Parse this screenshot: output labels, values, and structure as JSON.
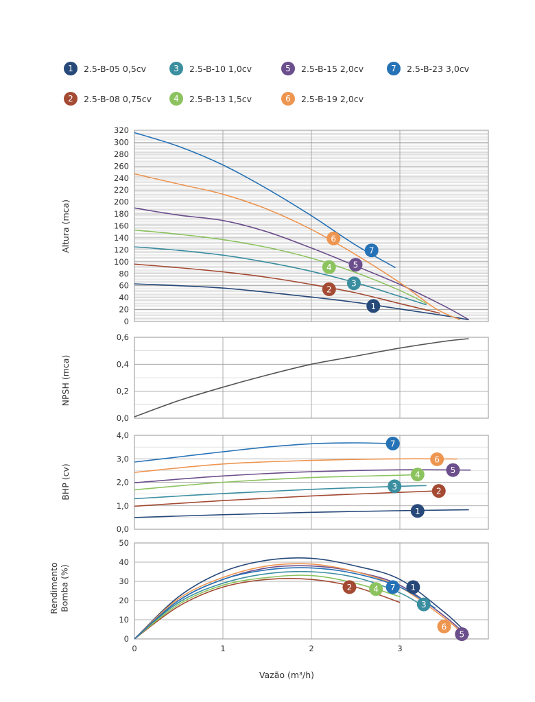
{
  "legend": [
    {
      "id": "1",
      "label": "2.5-B-05 0,5cv",
      "color": "#27497a"
    },
    {
      "id": "3",
      "label": "2.5-B-10 1,0cv",
      "color": "#3a8ea0"
    },
    {
      "id": "5",
      "label": "2.5-B-15 2,0cv",
      "color": "#6b4e8c"
    },
    {
      "id": "7",
      "label": "2.5-B-23 3,0cv",
      "color": "#2672b6"
    },
    {
      "id": "2",
      "label": "2.5-B-08 0,75cv",
      "color": "#a44a33"
    },
    {
      "id": "4",
      "label": "2.5-B-13 1,5cv",
      "color": "#8cc35f"
    },
    {
      "id": "6",
      "label": "2.5-B-19 2,0cv",
      "color": "#ee9550"
    }
  ],
  "xlabel": "Vazão (m³/h)",
  "x_ticks": [
    "0",
    "1",
    "2",
    "3"
  ],
  "chart_data": [
    {
      "type": "line",
      "ylabel": "Altura (mca)",
      "xlim": [
        0,
        4
      ],
      "ylim": [
        0,
        320
      ],
      "y_ticks": [
        "0",
        "20",
        "40",
        "60",
        "80",
        "100",
        "120",
        "140",
        "160",
        "180",
        "200",
        "220",
        "240",
        "260",
        "280",
        "300",
        "320"
      ],
      "grid": true,
      "series": [
        {
          "id": "1",
          "x": [
            0,
            0.5,
            1,
            1.5,
            2,
            2.5,
            3,
            3.5,
            3.78
          ],
          "values": [
            63,
            60,
            56,
            49,
            41,
            32,
            21,
            10,
            3
          ],
          "label_at": [
            2.7,
            26
          ]
        },
        {
          "id": "2",
          "x": [
            0,
            0.5,
            1,
            1.5,
            2,
            2.5,
            3,
            3.45
          ],
          "values": [
            96,
            90,
            83,
            74,
            62,
            48,
            30,
            14
          ],
          "label_at": [
            2.2,
            54
          ]
        },
        {
          "id": "3",
          "x": [
            0,
            0.5,
            1,
            1.5,
            2,
            2.5,
            3,
            3.3
          ],
          "values": [
            125,
            119,
            111,
            99,
            84,
            65,
            42,
            28
          ],
          "label_at": [
            2.48,
            64
          ]
        },
        {
          "id": "4",
          "x": [
            0,
            0.5,
            1,
            1.5,
            2,
            2.5,
            3,
            3.3
          ],
          "values": [
            153,
            146,
            137,
            124,
            106,
            82,
            52,
            30
          ],
          "label_at": [
            2.2,
            91
          ]
        },
        {
          "id": "5",
          "x": [
            0,
            0.5,
            1,
            1.5,
            2,
            2.5,
            3,
            3.5,
            3.78
          ],
          "values": [
            190,
            178,
            169,
            150,
            123,
            93,
            62,
            26,
            3
          ],
          "label_at": [
            2.5,
            95
          ]
        },
        {
          "id": "6",
          "x": [
            0,
            0.5,
            1,
            1.5,
            2,
            2.5,
            3,
            3.4,
            3.68
          ],
          "values": [
            247,
            230,
            213,
            188,
            154,
            112,
            65,
            22,
            3
          ],
          "label_at": [
            2.25,
            139
          ]
        },
        {
          "id": "7",
          "x": [
            0,
            0.5,
            1,
            1.5,
            2,
            2.5,
            2.95
          ],
          "values": [
            316,
            293,
            262,
            222,
            177,
            128,
            90
          ],
          "label_at": [
            2.68,
            119
          ]
        }
      ]
    },
    {
      "type": "line",
      "ylabel": "NPSH (mca)",
      "xlim": [
        0,
        4
      ],
      "ylim": [
        0,
        0.6
      ],
      "y_ticks": [
        "0,0",
        "0,2",
        "0,4",
        "0,6"
      ],
      "grid": true,
      "series": [
        {
          "name": "",
          "x": [
            0,
            0.5,
            1,
            1.5,
            2,
            2.5,
            3,
            3.5,
            3.78
          ],
          "values": [
            0.01,
            0.13,
            0.23,
            0.32,
            0.4,
            0.46,
            0.52,
            0.57,
            0.59
          ],
          "color": "#555555"
        }
      ]
    },
    {
      "type": "line",
      "ylabel": "BHP (cv)",
      "xlim": [
        0,
        4
      ],
      "ylim": [
        0,
        4
      ],
      "y_ticks": [
        "0,0",
        "1,0",
        "2,0",
        "3,0",
        "4,0"
      ],
      "grid": true,
      "series": [
        {
          "id": "1",
          "x": [
            0,
            1,
            2,
            3,
            3.78
          ],
          "values": [
            0.5,
            0.62,
            0.72,
            0.79,
            0.83
          ],
          "label_at": [
            3.2,
            0.78
          ]
        },
        {
          "id": "2",
          "x": [
            0,
            1,
            2,
            3,
            3.4
          ],
          "values": [
            0.98,
            1.22,
            1.42,
            1.57,
            1.63
          ],
          "label_at": [
            3.44,
            1.63
          ]
        },
        {
          "id": "3",
          "x": [
            0,
            1,
            2,
            3,
            3.3
          ],
          "values": [
            1.3,
            1.52,
            1.7,
            1.83,
            1.86
          ],
          "label_at": [
            2.94,
            1.83
          ]
        },
        {
          "id": "4",
          "x": [
            0,
            1,
            2,
            3,
            3.2
          ],
          "values": [
            1.68,
            2.0,
            2.2,
            2.3,
            2.33
          ],
          "label_at": [
            3.2,
            2.33
          ]
        },
        {
          "id": "5",
          "x": [
            0,
            1,
            2,
            3,
            3.8
          ],
          "values": [
            1.98,
            2.27,
            2.45,
            2.53,
            2.52
          ],
          "label_at": [
            3.6,
            2.52
          ]
        },
        {
          "id": "6",
          "x": [
            0,
            1,
            2,
            3,
            3.65
          ],
          "values": [
            2.42,
            2.78,
            2.93,
            3.0,
            2.99
          ],
          "label_at": [
            3.42,
            2.98
          ]
        },
        {
          "id": "7",
          "x": [
            0,
            0.5,
            1,
            1.5,
            2,
            2.5,
            2.9
          ],
          "values": [
            2.86,
            3.08,
            3.3,
            3.5,
            3.64,
            3.68,
            3.65
          ],
          "label_at": [
            2.92,
            3.65
          ]
        }
      ]
    },
    {
      "type": "line",
      "ylabel": "Rendimento Bomba (%)",
      "xlim": [
        0,
        4
      ],
      "ylim": [
        0,
        50
      ],
      "y_ticks": [
        "0",
        "10",
        "20",
        "30",
        "40",
        "50"
      ],
      "grid": true,
      "series": [
        {
          "id": "1",
          "x": [
            0,
            0.5,
            1,
            1.5,
            2,
            2.5,
            3,
            3.5,
            3.78
          ],
          "values": [
            0,
            22,
            35,
            41,
            42,
            38,
            31,
            14,
            2
          ],
          "label_at": [
            3.15,
            27
          ]
        },
        {
          "id": "2",
          "x": [
            0,
            0.5,
            1,
            1.5,
            2,
            2.5,
            3
          ],
          "values": [
            0,
            17,
            27,
            31,
            31,
            27,
            19
          ],
          "label_at": [
            2.43,
            27
          ]
        },
        {
          "id": "3",
          "x": [
            0,
            0.5,
            1,
            1.5,
            2,
            2.5,
            3,
            3.3
          ],
          "values": [
            0,
            19,
            29,
            34,
            35,
            32,
            24,
            16
          ],
          "label_at": [
            3.27,
            18
          ]
        },
        {
          "id": "4",
          "x": [
            0,
            0.5,
            1,
            1.5,
            2,
            2.5,
            3
          ],
          "values": [
            0,
            18,
            28,
            32,
            33,
            29,
            22
          ],
          "label_at": [
            2.73,
            26
          ]
        },
        {
          "id": "5",
          "x": [
            0,
            0.5,
            1,
            1.5,
            2,
            2.5,
            3,
            3.5,
            3.75
          ],
          "values": [
            0,
            20,
            31,
            37,
            38,
            35,
            28,
            12,
            2
          ],
          "label_at": [
            3.7,
            2.5
          ]
        },
        {
          "id": "6",
          "x": [
            0,
            0.5,
            1,
            1.5,
            2,
            2.5,
            3,
            3.5,
            3.68
          ],
          "values": [
            0,
            21,
            32,
            38,
            39,
            35,
            27,
            11,
            4
          ],
          "label_at": [
            3.5,
            6.5
          ]
        },
        {
          "id": "7",
          "x": [
            0,
            0.5,
            1,
            1.5,
            2,
            2.5,
            3,
            3.4
          ],
          "values": [
            0,
            20,
            31,
            36,
            37,
            34,
            27,
            16
          ],
          "label_at": [
            2.92,
            27
          ]
        }
      ]
    }
  ]
}
